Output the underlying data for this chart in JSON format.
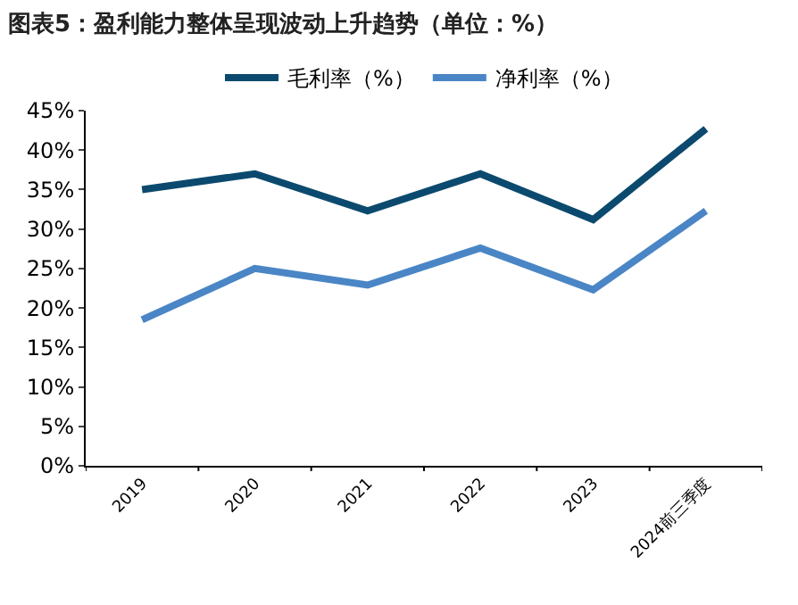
{
  "chart_data": {
    "type": "line",
    "title": "图表5：盈利能力整体呈现波动上升趋势（单位：%）",
    "categories": [
      "2019",
      "2020",
      "2021",
      "2022",
      "2023",
      "2024前三季度"
    ],
    "series": [
      {
        "name": "毛利率（%）",
        "color": "#0b4a6e",
        "values": [
          35.0,
          37.0,
          32.3,
          37.0,
          31.2,
          42.7
        ]
      },
      {
        "name": "净利率（%）",
        "color": "#4a86c5",
        "values": [
          18.5,
          25.0,
          22.9,
          27.6,
          22.3,
          32.3
        ]
      }
    ],
    "ylim": [
      0,
      45
    ],
    "yticks": [
      {
        "value": 0,
        "label": "0%"
      },
      {
        "value": 5,
        "label": "5%"
      },
      {
        "value": 10,
        "label": "10%"
      },
      {
        "value": 15,
        "label": "15%"
      },
      {
        "value": 20,
        "label": "20%"
      },
      {
        "value": 25,
        "label": "25%"
      },
      {
        "value": 30,
        "label": "30%"
      },
      {
        "value": 35,
        "label": "35%"
      },
      {
        "value": 40,
        "label": "40%"
      },
      {
        "value": 45,
        "label": "45%"
      }
    ],
    "grid": false,
    "legend": "top",
    "marker": "none",
    "line_style": "solid"
  }
}
